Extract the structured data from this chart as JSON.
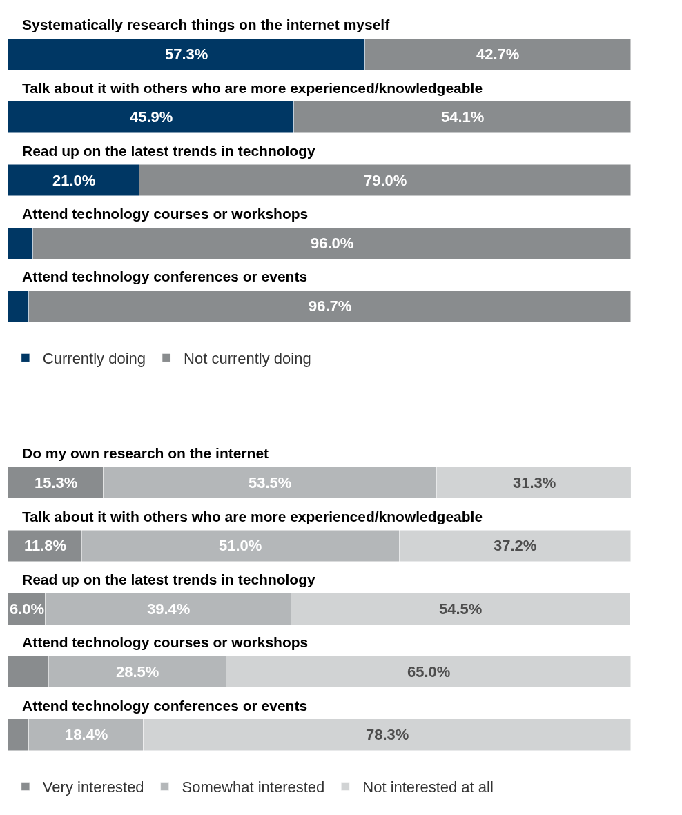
{
  "chart_data": [
    {
      "type": "bar",
      "orientation": "horizontal",
      "stacked": true,
      "categories": [
        "Systematically research things on the internet myself",
        "Talk about it with others who are more experienced/knowledgeable",
        "Read up on the latest trends in technology",
        "Attend technology courses or workshops",
        "Attend technology conferences or events"
      ],
      "series": [
        {
          "name": "Currently doing",
          "color": "#003764",
          "values": [
            57.3,
            45.9,
            21.0,
            4.0,
            3.3
          ],
          "value_labels": [
            "57.3%",
            "45.9%",
            "21.0%",
            null,
            null
          ]
        },
        {
          "name": "Not currently doing",
          "color": "#898c8e",
          "values": [
            42.7,
            54.1,
            79.0,
            96.0,
            96.7
          ],
          "value_labels": [
            "42.7%",
            "54.1%",
            "79.0%",
            "96.0%",
            "96.7%"
          ]
        }
      ],
      "xlim": [
        0,
        100
      ],
      "tick_labels": false,
      "legend": "bottom"
    },
    {
      "type": "bar",
      "orientation": "horizontal",
      "stacked": true,
      "categories": [
        "Do my own research on the internet",
        "Talk about it with others who are more experienced/knowledgeable",
        "Read up on the latest trends in technology",
        "Attend technology courses or workshops",
        "Attend technology conferences or events"
      ],
      "series": [
        {
          "name": "Very interested",
          "color": "#898c8e",
          "values": [
            15.3,
            11.8,
            6.0,
            6.5,
            3.3
          ],
          "value_labels": [
            "15.3%",
            "11.8%",
            "6.0%",
            null,
            null
          ]
        },
        {
          "name": "Somewhat interested",
          "color": "#b4b7b9",
          "values": [
            53.5,
            51.0,
            39.4,
            28.5,
            18.4
          ],
          "value_labels": [
            "53.5%",
            "51.0%",
            "39.4%",
            "28.5%",
            "18.4%"
          ]
        },
        {
          "name": "Not interested at all",
          "color": "#d1d3d4",
          "values": [
            31.3,
            37.2,
            54.5,
            65.0,
            78.3
          ],
          "value_labels": [
            "31.3%",
            "37.2%",
            "54.5%",
            "65.0%",
            "78.3%"
          ]
        }
      ],
      "xlim": [
        0,
        100
      ],
      "tick_labels": false,
      "legend": "bottom"
    }
  ]
}
